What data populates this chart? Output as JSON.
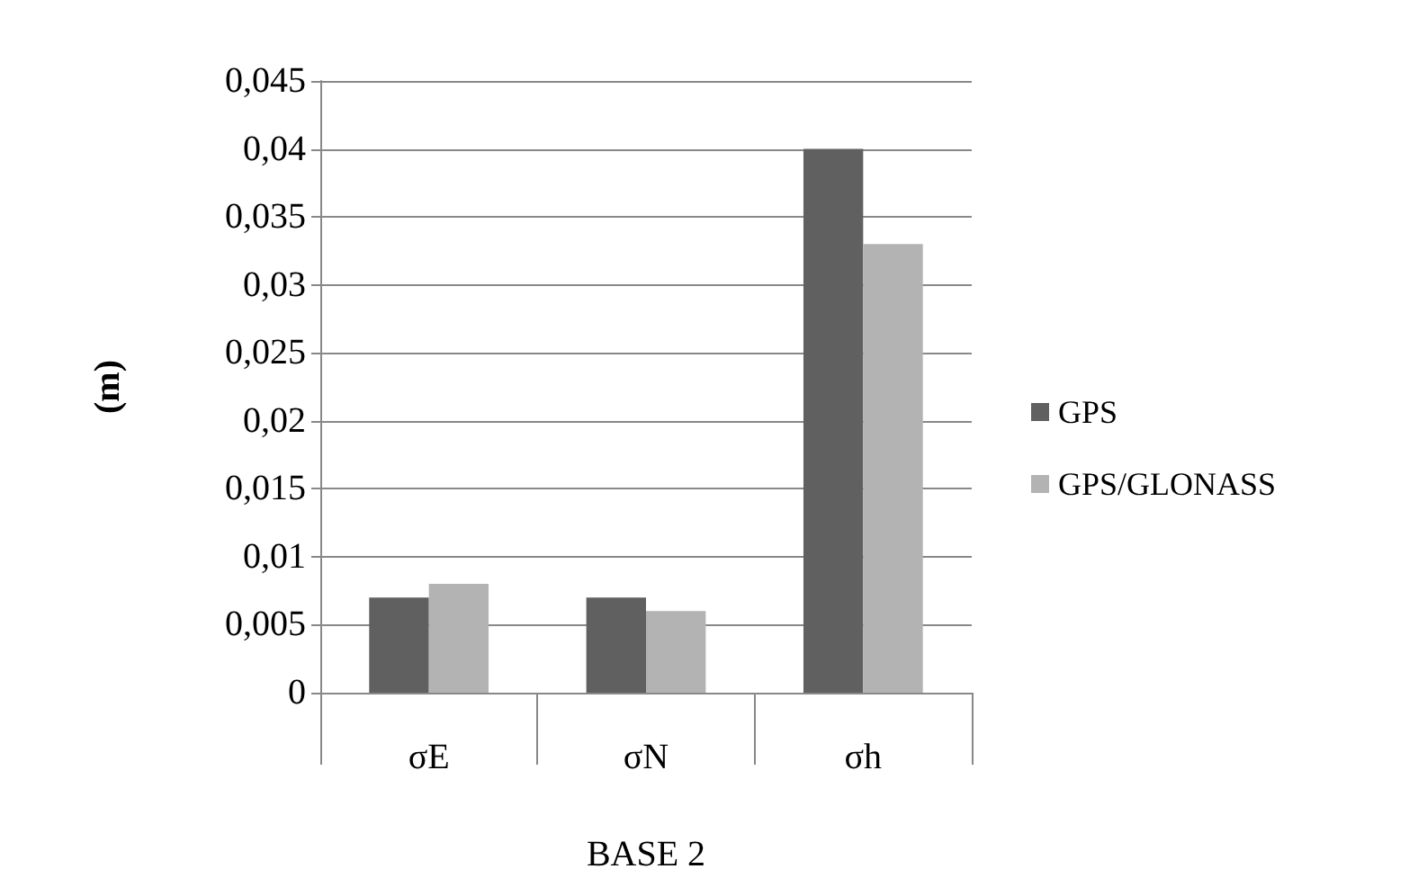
{
  "chart_data": {
    "type": "bar",
    "ylabel": "(m)",
    "xlabel": "BASE 2",
    "categories": [
      "σE",
      "σN",
      "σh"
    ],
    "series": [
      {
        "name": "GPS",
        "color": "#606060",
        "values": [
          0.007,
          0.007,
          0.04
        ]
      },
      {
        "name": "GPS/GLONASS",
        "color": "#b3b3b3",
        "values": [
          0.008,
          0.006,
          0.033
        ]
      }
    ],
    "ylim": [
      0,
      0.045
    ],
    "yticks": [
      {
        "value": 0,
        "label": "0"
      },
      {
        "value": 0.005,
        "label": "0,005"
      },
      {
        "value": 0.01,
        "label": "0,01"
      },
      {
        "value": 0.015,
        "label": "0,015"
      },
      {
        "value": 0.02,
        "label": "0,02"
      },
      {
        "value": 0.025,
        "label": "0,025"
      },
      {
        "value": 0.03,
        "label": "0,03"
      },
      {
        "value": 0.035,
        "label": "0,035"
      },
      {
        "value": 0.04,
        "label": "0,04"
      },
      {
        "value": 0.045,
        "label": "0,045"
      }
    ],
    "grid": "y",
    "legend": "right"
  }
}
